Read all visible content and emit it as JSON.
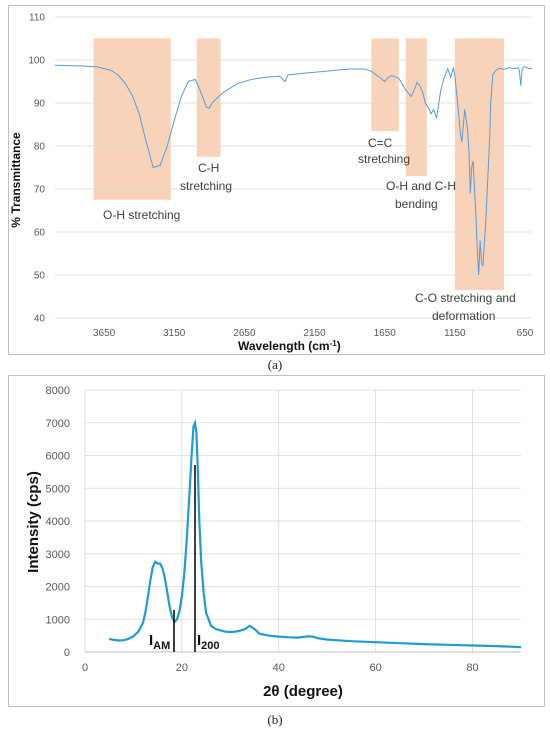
{
  "captions": {
    "a": "(a)",
    "b": "(b)"
  },
  "chart_data": [
    {
      "type": "line",
      "panel": "a",
      "xlabel": "Wavelength (cm",
      "xlabel_sup": "-1",
      "xlabel_end": ")",
      "ylabel": "% Transmittance",
      "xlim": [
        4000,
        600
      ],
      "ylim": [
        40,
        110
      ],
      "x_reversed": true,
      "xticks": [
        3650,
        3150,
        2650,
        2150,
        1650,
        1150,
        650
      ],
      "yticks": [
        40,
        50,
        60,
        70,
        80,
        90,
        100,
        110
      ],
      "grid": "horizontal",
      "color": "#5b9bd5",
      "x": [
        4000,
        3900,
        3800,
        3700,
        3600,
        3550,
        3500,
        3450,
        3400,
        3350,
        3300,
        3250,
        3200,
        3150,
        3100,
        3050,
        3000,
        2960,
        2920,
        2900,
        2880,
        2850,
        2800,
        2700,
        2600,
        2500,
        2400,
        2360,
        2340,
        2300,
        2200,
        2100,
        2000,
        1900,
        1800,
        1750,
        1700,
        1650,
        1630,
        1600,
        1550,
        1500,
        1460,
        1430,
        1420,
        1400,
        1380,
        1360,
        1340,
        1320,
        1300,
        1280,
        1250,
        1230,
        1200,
        1180,
        1160,
        1150,
        1130,
        1110,
        1100,
        1080,
        1060,
        1050,
        1040,
        1030,
        1020,
        1000,
        990,
        980,
        970,
        960,
        950,
        930,
        900,
        895,
        880,
        860,
        840,
        820,
        800,
        760,
        720,
        700,
        690,
        680,
        670,
        660,
        650,
        620,
        600
      ],
      "y": [
        98.8,
        98.7,
        98.6,
        98.4,
        97.6,
        96.5,
        94.6,
        91.8,
        87.5,
        81.0,
        75.0,
        75.5,
        80.0,
        86.0,
        91.5,
        95.0,
        95.5,
        92.5,
        89.0,
        88.8,
        90.0,
        91.0,
        92.5,
        94.5,
        95.5,
        96.0,
        96.2,
        95.0,
        96.5,
        96.7,
        97.0,
        97.3,
        97.6,
        97.9,
        97.9,
        97.5,
        96.3,
        95.0,
        95.8,
        96.4,
        95.8,
        93.0,
        91.5,
        93.8,
        94.8,
        94.0,
        92.5,
        90.0,
        89.0,
        87.5,
        88.5,
        86.5,
        93.0,
        95.5,
        98.0,
        96.0,
        98.2,
        96.5,
        90.0,
        83.0,
        81.0,
        88.5,
        84.0,
        79.0,
        69.0,
        75.0,
        76.5,
        64.0,
        56.0,
        50.0,
        58.0,
        53.0,
        52.0,
        62.0,
        83.0,
        89.5,
        96.5,
        97.5,
        98.0,
        98.0,
        97.8,
        98.2,
        98.0,
        98.2,
        97.5,
        94.0,
        98.0,
        98.4,
        98.4,
        98.0,
        98.0
      ]
    },
    {
      "type": "line",
      "panel": "b",
      "xlabel": "2θ (degree)",
      "ylabel": "Intensity (cps)",
      "xlim": [
        0,
        90
      ],
      "ylim": [
        0,
        8000
      ],
      "xticks": [
        0,
        20,
        40,
        60,
        80
      ],
      "yticks": [
        0,
        1000,
        2000,
        3000,
        4000,
        5000,
        6000,
        7000,
        8000
      ],
      "grid": "both",
      "color": "#1f9bd7",
      "x": [
        5,
        6,
        7,
        8,
        9,
        10,
        11,
        12,
        12.5,
        13,
        13.5,
        14,
        14.5,
        15,
        15.5,
        16,
        16.5,
        17,
        17.5,
        18,
        18.5,
        19,
        19.5,
        20,
        20.5,
        21,
        21.5,
        22,
        22.4,
        22.7,
        23,
        23.3,
        23.6,
        24,
        24.5,
        25,
        26,
        27,
        28,
        29,
        30,
        31,
        32,
        33,
        34,
        35,
        36,
        38,
        40,
        42,
        44,
        46,
        47,
        48,
        50,
        55,
        60,
        65,
        70,
        75,
        80,
        85,
        90
      ],
      "y": [
        400,
        370,
        350,
        360,
        400,
        480,
        620,
        900,
        1250,
        1700,
        2200,
        2600,
        2750,
        2700,
        2700,
        2550,
        2250,
        1800,
        1350,
        1050,
        920,
        1000,
        1250,
        1700,
        2400,
        3400,
        4700,
        6000,
        6900,
        7000,
        6700,
        5500,
        4000,
        2700,
        1800,
        1200,
        800,
        700,
        660,
        620,
        610,
        620,
        650,
        700,
        800,
        700,
        560,
        500,
        470,
        450,
        440,
        480,
        470,
        420,
        380,
        330,
        300,
        270,
        240,
        220,
        200,
        180,
        150
      ]
    }
  ],
  "annotations": {
    "oh_stretch": "O-H stretching",
    "ch_stretch_1": "C-H",
    "ch_stretch_2": "stretching",
    "cc_stretch_1": "C=C",
    "cc_stretch_2": "stretching",
    "bend_1": "O-H and C-H",
    "bend_2": "bending",
    "co_1": "C-O stretching and",
    "co_2": "deformation",
    "iam_main": "I",
    "iam_sub": "AM",
    "i200_main": "I",
    "i200_sub": "200"
  },
  "colors": {
    "band": "#f8cbad",
    "gridline": "#d9d9d9",
    "axis": "#bfbfbf"
  }
}
